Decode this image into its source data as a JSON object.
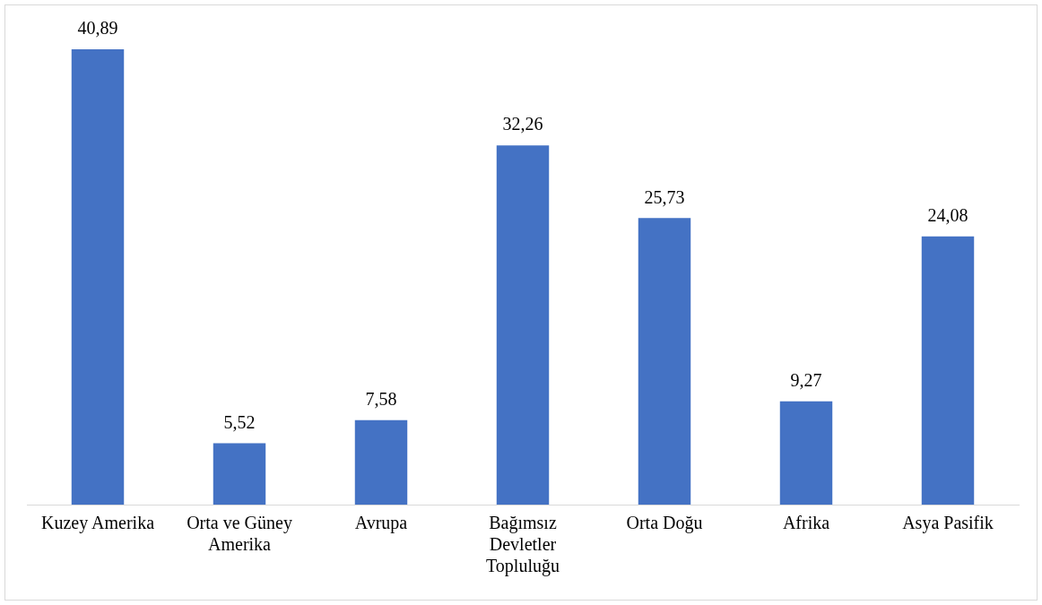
{
  "chart_data": {
    "type": "bar",
    "categories": [
      "Kuzey Amerika",
      "Orta ve Güney Amerika",
      "Avrupa",
      "Bağımsız Devletler Topluluğu",
      "Orta Doğu",
      "Afrika",
      "Asya Pasifik"
    ],
    "values": [
      40.89,
      5.52,
      7.58,
      32.26,
      25.73,
      9.27,
      24.08
    ],
    "value_labels": [
      "40,89",
      "5,52",
      "7,58",
      "32,26",
      "25,73",
      "9,27",
      "24,08"
    ],
    "color": "#4472c4",
    "grid": false,
    "legend": false,
    "tick_labels": "x"
  }
}
